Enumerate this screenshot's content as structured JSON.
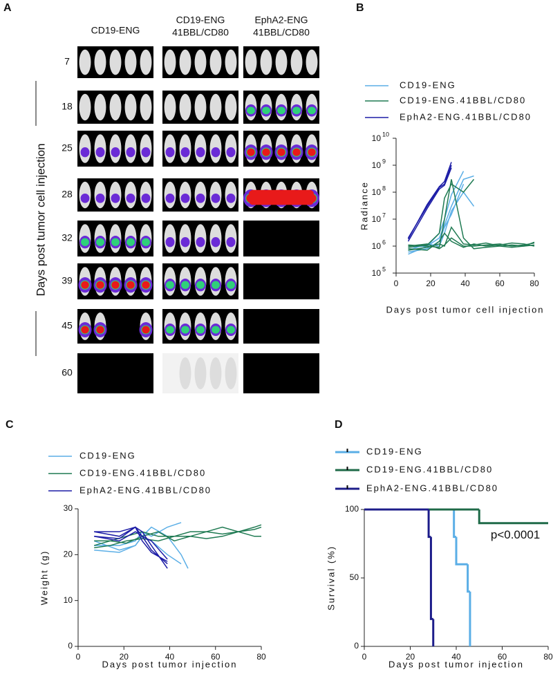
{
  "panel_labels": [
    "A",
    "B",
    "C",
    "D"
  ],
  "panel_a": {
    "columns": [
      [
        "CD19-ENG"
      ],
      [
        "CD19-ENG",
        "41BBL/CD80"
      ],
      [
        "EphA2-ENG",
        "41BBL/CD80"
      ]
    ],
    "rows": [
      7,
      18,
      25,
      28,
      32,
      39,
      45,
      60
    ],
    "ylabel": "Days post tumor cell injection"
  },
  "chart_data": [
    {
      "type": "line",
      "yscale": "log",
      "xlabel": "Days post tumor cell injection",
      "ylabel": "Radiance",
      "xlim": [
        0,
        80
      ],
      "xticks": [
        0,
        20,
        40,
        60,
        80
      ],
      "ylim": [
        100000,
        10000000000
      ],
      "yticks": [
        {
          "value": 100000,
          "label": "10",
          "exponent": "5"
        },
        {
          "value": 1000000,
          "label": "10",
          "exponent": "6"
        },
        {
          "value": 10000000,
          "label": "10",
          "exponent": "7"
        },
        {
          "value": 100000000,
          "label": "10",
          "exponent": "8"
        },
        {
          "value": 1000000000,
          "label": "10",
          "exponent": "9"
        },
        {
          "value": 10000000000,
          "label": "10",
          "exponent": "10"
        }
      ],
      "series": [
        {
          "name": "CD19-ENG",
          "color": "#5aaee6",
          "lines": [
            {
              "x": [
                7,
                18,
                25,
                28,
                32,
                39,
                45
              ],
              "values": [
                500000,
                1000000,
                2000000,
                6000000,
                30000000,
                300000000,
                400000000
              ]
            },
            {
              "x": [
                7,
                18,
                25,
                28,
                32,
                39,
                45
              ],
              "values": [
                700000,
                1200000,
                1000000,
                3000000,
                20000000,
                100000000,
                30000000
              ]
            },
            {
              "x": [
                7,
                18,
                25,
                28,
                32,
                39
              ],
              "values": [
                900000,
                1000000,
                3000000,
                10000000,
                80000000,
                600000000
              ]
            },
            {
              "x": [
                7,
                18,
                25,
                28,
                32,
                39
              ],
              "values": [
                600000,
                800000,
                1500000,
                5000000,
                15000000,
                200000000
              ]
            }
          ]
        },
        {
          "name": "CD19-ENG.41BBL/CD80",
          "color": "#1f7a52",
          "lines": [
            {
              "x": [
                7,
                18,
                25,
                28,
                32,
                39,
                45,
                52,
                60,
                67,
                74,
                80
              ],
              "values": [
                1000000,
                1200000,
                800000,
                1100000,
                2000000,
                1000000,
                1000000,
                1100000,
                1200000,
                1000000,
                1100000,
                1300000
              ]
            },
            {
              "x": [
                7,
                18,
                25,
                28,
                32,
                39,
                45
              ],
              "values": [
                900000,
                1100000,
                3000000,
                60000000,
                200000000,
                100000000,
                300000000
              ]
            },
            {
              "x": [
                7,
                18,
                25,
                28,
                32,
                39,
                45,
                52,
                60,
                67,
                74,
                80
              ],
              "values": [
                800000,
                700000,
                1500000,
                3000000,
                1500000,
                900000,
                1200000,
                1000000,
                1100000,
                1300000,
                1200000,
                1000000
              ]
            },
            {
              "x": [
                7,
                18,
                25,
                28,
                32,
                39,
                45,
                52,
                60,
                67,
                74,
                80
              ],
              "values": [
                1100000,
                1000000,
                900000,
                10000000,
                300000000,
                2000000,
                800000,
                900000,
                1000000,
                1100000,
                1000000,
                1400000
              ]
            },
            {
              "x": [
                7,
                18,
                25,
                28,
                32,
                39,
                45,
                52,
                60,
                67,
                74,
                80
              ],
              "values": [
                700000,
                900000,
                1200000,
                1000000,
                5000000,
                1200000,
                1100000,
                1300000,
                1000000,
                900000,
                1000000,
                1100000
              ]
            }
          ]
        },
        {
          "name": "EphA2-ENG.41BBL/CD80",
          "color": "#1c1ca6",
          "lines": [
            {
              "x": [
                7,
                18,
                25,
                28,
                32
              ],
              "values": [
                2000000,
                30000000,
                150000000,
                200000000,
                1000000000
              ]
            },
            {
              "x": [
                7,
                18,
                25,
                28,
                32
              ],
              "values": [
                1500000,
                25000000,
                130000000,
                180000000,
                800000000
              ]
            },
            {
              "x": [
                7,
                18,
                25,
                28,
                32
              ],
              "values": [
                1800000,
                35000000,
                160000000,
                250000000,
                1300000000
              ]
            }
          ]
        }
      ]
    },
    {
      "type": "line",
      "yscale": "linear",
      "xlabel": "Days post tumor injection",
      "ylabel": "Weight (g)",
      "xlim": [
        0,
        80
      ],
      "xticks": [
        0,
        20,
        40,
        60,
        80
      ],
      "ylim": [
        0,
        30
      ],
      "yticks": [
        0,
        10,
        20,
        30
      ],
      "series": [
        {
          "name": "CD19-ENG",
          "color": "#5aaee6",
          "lines": [
            {
              "x": [
                7,
                18,
                25,
                28,
                32,
                39,
                45,
                48
              ],
              "values": [
                21,
                20.5,
                22,
                24,
                26,
                24,
                20,
                17
              ]
            },
            {
              "x": [
                7,
                18,
                25,
                28,
                32,
                39,
                45
              ],
              "values": [
                22,
                22,
                23,
                25,
                24,
                26,
                27
              ]
            },
            {
              "x": [
                7,
                18,
                25,
                28,
                32,
                39,
                45
              ],
              "values": [
                23,
                21,
                22,
                24,
                23,
                20,
                18
              ]
            }
          ]
        },
        {
          "name": "CD19-ENG.41BBL/CD80",
          "color": "#1f7a52",
          "lines": [
            {
              "x": [
                7,
                14,
                21,
                28,
                35,
                42,
                49,
                56,
                63,
                70,
                77,
                80
              ],
              "values": [
                22,
                23,
                24,
                25,
                24,
                24,
                25,
                25,
                24.5,
                25,
                25.5,
                26
              ]
            },
            {
              "x": [
                7,
                14,
                21,
                28,
                35,
                42,
                49,
                56,
                63,
                70,
                77,
                80
              ],
              "values": [
                21.5,
                22,
                23,
                23.5,
                23,
                24,
                24,
                25,
                26,
                25,
                26,
                26.5
              ]
            },
            {
              "x": [
                7,
                14,
                21,
                28,
                35,
                42,
                49,
                56,
                63,
                70,
                77,
                80
              ],
              "values": [
                23,
                23,
                22.5,
                24,
                25,
                23,
                24,
                23.5,
                24,
                25,
                24,
                24
              ]
            }
          ]
        },
        {
          "name": "EphA2-ENG.41BBL/CD80",
          "color": "#1c1ca6",
          "lines": [
            {
              "x": [
                7,
                18,
                25,
                28,
                32,
                39
              ],
              "values": [
                25,
                24,
                26,
                25,
                22,
                17
              ]
            },
            {
              "x": [
                7,
                18,
                25,
                28,
                32,
                39
              ],
              "values": [
                24,
                23,
                25,
                24,
                21,
                18
              ]
            },
            {
              "x": [
                7,
                18,
                25,
                28,
                32,
                39
              ],
              "values": [
                25,
                25,
                26,
                24,
                23,
                19
              ]
            },
            {
              "x": [
                7,
                18,
                25,
                28,
                32,
                39
              ],
              "values": [
                24,
                23.5,
                26,
                23,
                20.5,
                18.5
              ]
            }
          ]
        }
      ]
    },
    {
      "type": "step",
      "yscale": "linear",
      "xlabel": "Days post tumor injection",
      "ylabel": "Survival (%)",
      "xlim": [
        0,
        80
      ],
      "xticks": [
        0,
        20,
        40,
        60,
        80
      ],
      "ylim": [
        0,
        100
      ],
      "yticks": [
        0,
        50,
        100
      ],
      "annotation": "p<0.0001",
      "series": [
        {
          "name": "CD19-ENG",
          "color": "#5aaee6",
          "lines": [
            {
              "x": [
                0,
                39,
                40,
                45,
                46
              ],
              "values": [
                100,
                80,
                60,
                40,
                0
              ]
            }
          ]
        },
        {
          "name": "CD19-ENG.41BBL/CD80",
          "color": "#1f6a48",
          "lines": [
            {
              "x": [
                0,
                50,
                80
              ],
              "values": [
                100,
                90,
                90
              ]
            }
          ]
        },
        {
          "name": "EphA2-ENG.41BBL/CD80",
          "color": "#1c1c8a",
          "lines": [
            {
              "x": [
                0,
                28,
                29,
                30
              ],
              "values": [
                100,
                80,
                20,
                0
              ]
            }
          ]
        }
      ]
    }
  ]
}
